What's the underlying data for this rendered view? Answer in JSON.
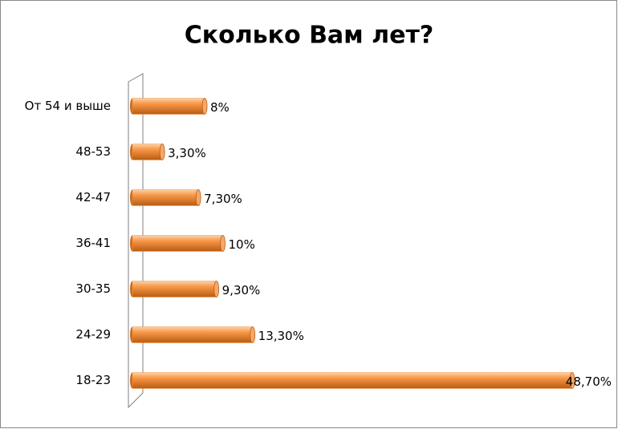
{
  "chart_data": {
    "type": "bar",
    "orientation": "horizontal",
    "title": "Сколько Вам лет?",
    "categories": [
      "От 54 и выше",
      "48-53",
      "42-47",
      "36-41",
      "30-35",
      "24-29",
      "18-23"
    ],
    "values": [
      8,
      3.3,
      7.3,
      10,
      9.3,
      13.3,
      48.7
    ],
    "value_labels": [
      "8%",
      "3,30%",
      "7,30%",
      "10%",
      "9,30%",
      "13,30%",
      "48,70%"
    ],
    "color": "#f79646"
  }
}
